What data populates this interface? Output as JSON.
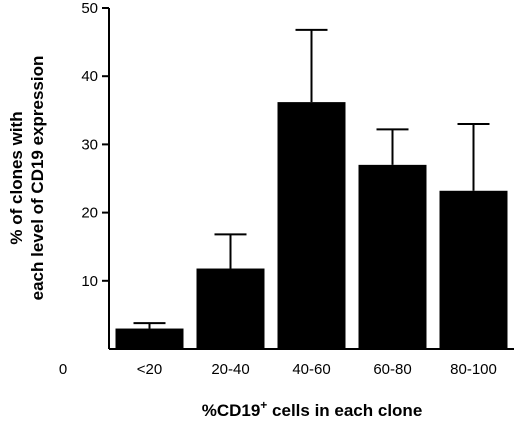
{
  "chart_data": {
    "type": "bar",
    "categories": [
      "<20",
      "20-40",
      "40-60",
      "60-80",
      "80-100"
    ],
    "values": [
      3,
      11.8,
      36.2,
      27,
      23.2
    ],
    "error_upper": [
      3.8,
      16.8,
      46.8,
      32.2,
      33
    ],
    "ylim": [
      0,
      50
    ],
    "yticks": [
      "0",
      "10",
      "20",
      "30",
      "40",
      "50"
    ],
    "origin_label": "0",
    "ylabel_line1": "% of clones with",
    "ylabel_line2": "each level of CD19 expression",
    "xlabel_prefix": "%CD19",
    "xlabel_sup": "+",
    "xlabel_suffix": " cells in each clone",
    "bar_color": "#000000"
  }
}
